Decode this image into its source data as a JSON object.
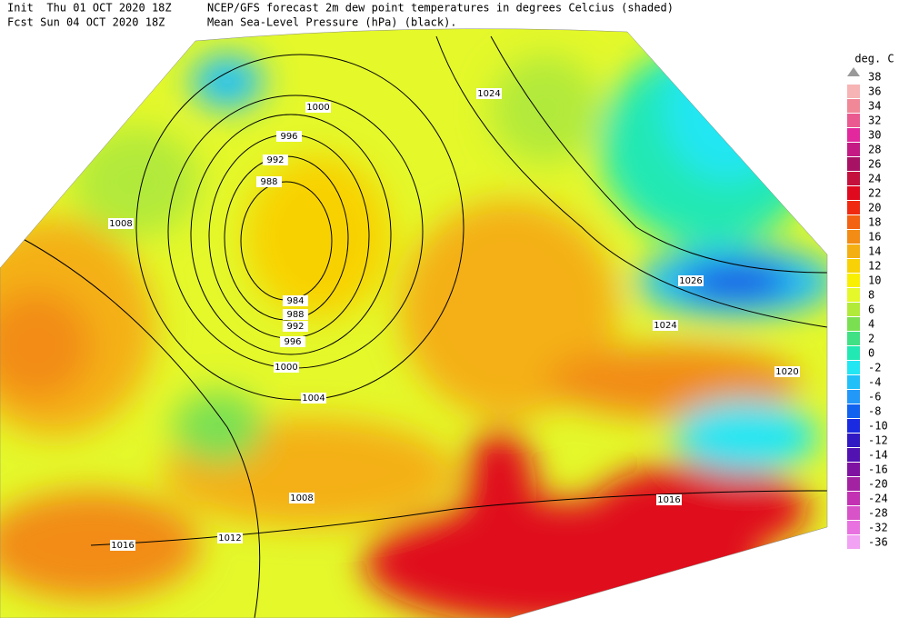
{
  "header": {
    "init": "Init  Thu 01 OCT 2020 18Z",
    "fcst": "Fcst Sun 04 OCT 2020 18Z",
    "title": "NCEP/GFS forecast 2m dew point temperatures in degrees Celcius (shaded)",
    "subtitle": "Mean Sea-Level Pressure (hPa) (black)."
  },
  "legend": {
    "unit": "deg. C",
    "top": 38,
    "items": [
      {
        "label": 36,
        "color": "#f6b4b4"
      },
      {
        "label": 34,
        "color": "#f08898"
      },
      {
        "label": 32,
        "color": "#ea5a90"
      },
      {
        "label": 30,
        "color": "#e2289c"
      },
      {
        "label": 28,
        "color": "#c41a84"
      },
      {
        "label": 26,
        "color": "#a81264"
      },
      {
        "label": 24,
        "color": "#c4103c"
      },
      {
        "label": 22,
        "color": "#e00a1e"
      },
      {
        "label": 20,
        "color": "#f02a10"
      },
      {
        "label": 18,
        "color": "#f26212"
      },
      {
        "label": 16,
        "color": "#f28c14"
      },
      {
        "label": 14,
        "color": "#f4b012"
      },
      {
        "label": 12,
        "color": "#f8d206"
      },
      {
        "label": 10,
        "color": "#f8f000"
      },
      {
        "label": 8,
        "color": "#e4f82a"
      },
      {
        "label": 6,
        "color": "#b2ea3a"
      },
      {
        "label": 4,
        "color": "#7ae052"
      },
      {
        "label": 2,
        "color": "#40e084"
      },
      {
        "label": 0,
        "color": "#22e8b4"
      },
      {
        "label": -2,
        "color": "#22e6f2"
      },
      {
        "label": -4,
        "color": "#22c0f8"
      },
      {
        "label": -6,
        "color": "#2298f8"
      },
      {
        "label": -8,
        "color": "#1262f0"
      },
      {
        "label": -10,
        "color": "#1a2ae0"
      },
      {
        "label": -12,
        "color": "#3018c2"
      },
      {
        "label": -14,
        "color": "#5212b2"
      },
      {
        "label": -16,
        "color": "#8012a2"
      },
      {
        "label": -20,
        "color": "#a222a2"
      },
      {
        "label": -24,
        "color": "#c232b2"
      },
      {
        "label": -28,
        "color": "#d852c8"
      },
      {
        "label": -32,
        "color": "#e872e0"
      },
      {
        "label": -36,
        "color": "#f2a2f2"
      }
    ]
  },
  "isobars": [
    1000,
    996,
    992,
    988,
    984,
    988,
    992,
    996,
    1000,
    1004,
    1008,
    1008,
    1012,
    1016,
    1024,
    1026,
    1024,
    1020,
    1016
  ]
}
